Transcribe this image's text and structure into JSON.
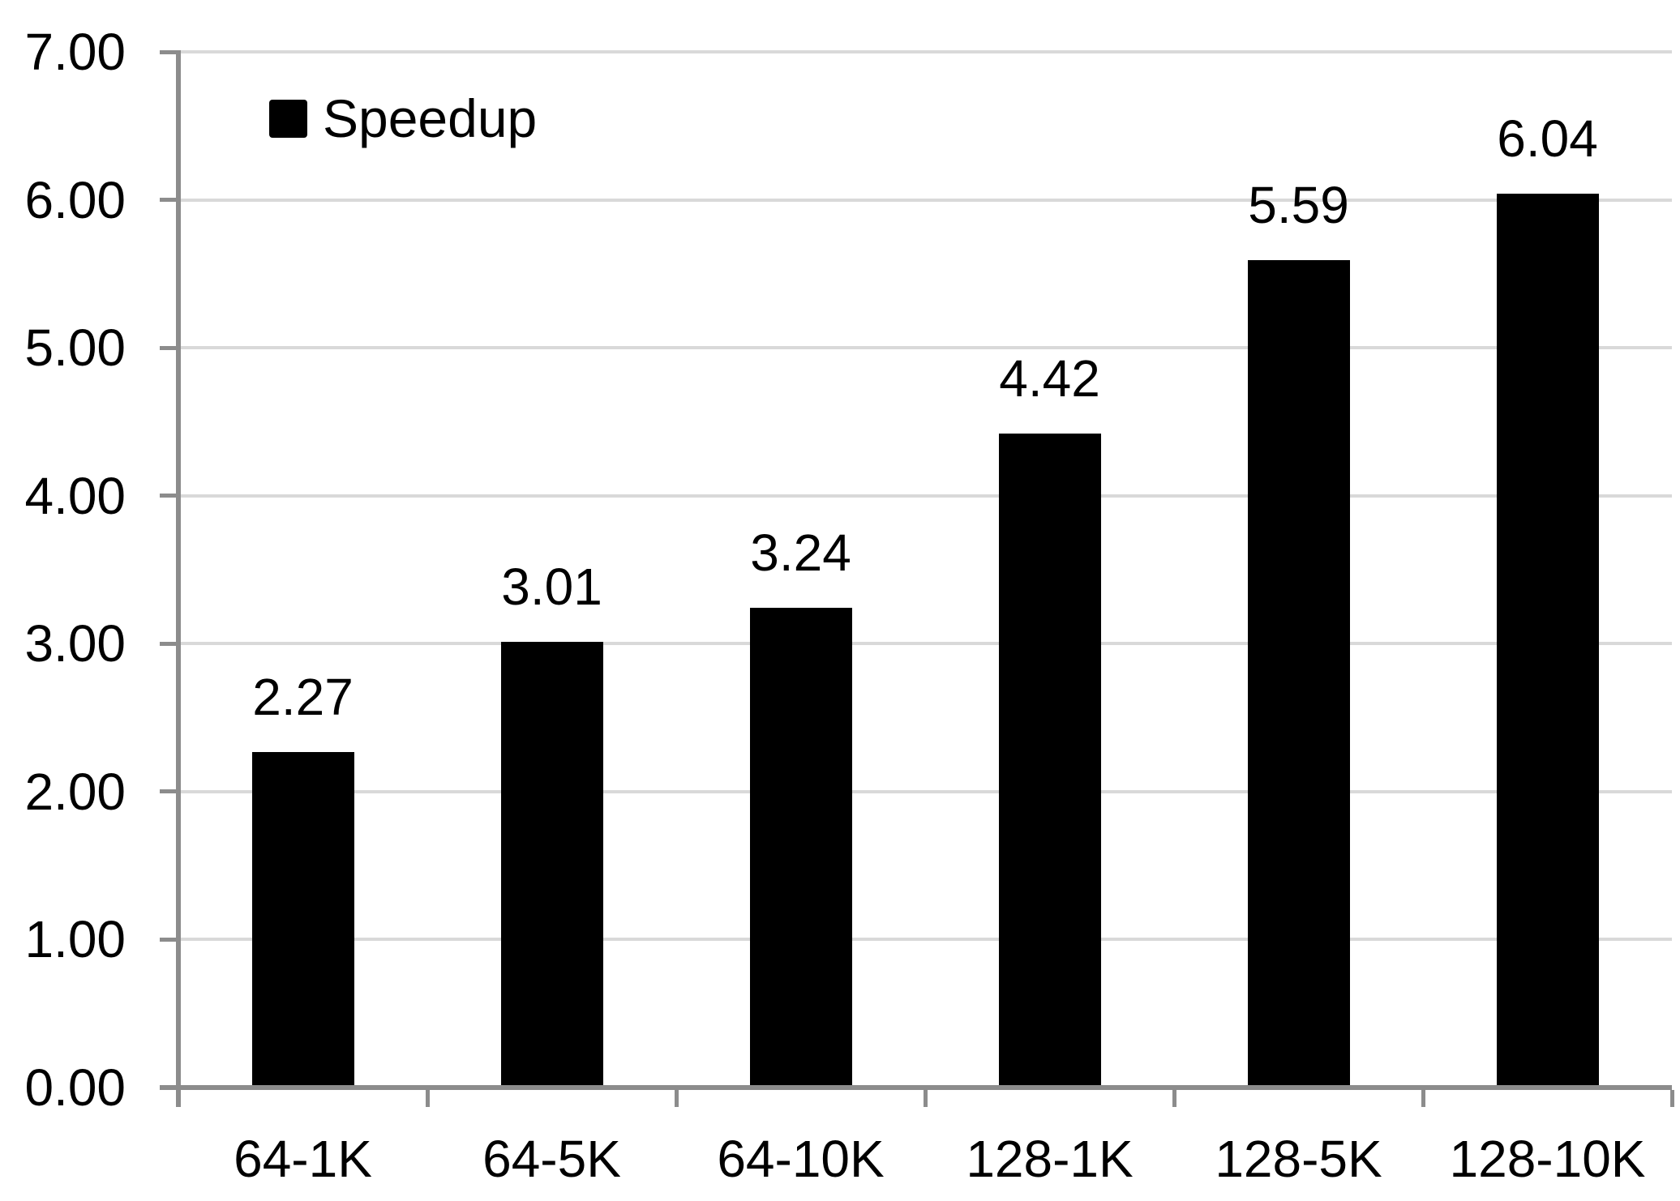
{
  "chart_data": {
    "type": "bar",
    "title": "",
    "categories": [
      "64-1K",
      "64-5K",
      "64-10K",
      "128-1K",
      "128-5K",
      "128-10K"
    ],
    "series": [
      {
        "name": "Speedup",
        "values": [
          2.27,
          3.01,
          3.24,
          4.42,
          5.59,
          6.04
        ]
      }
    ],
    "value_labels": [
      "2.27",
      "3.01",
      "3.24",
      "4.42",
      "5.59",
      "6.04"
    ],
    "xlabel": "",
    "ylabel": "",
    "ylim": [
      0,
      7
    ],
    "y_tick_step": 1,
    "y_tick_labels": [
      "0.00",
      "1.00",
      "2.00",
      "3.00",
      "4.00",
      "5.00",
      "6.00",
      "7.00"
    ],
    "grid": true,
    "legend": {
      "position": "top-left-inside",
      "entries": [
        "Speedup"
      ]
    },
    "colors": {
      "bar": "#000000",
      "gridline": "#D9D9D9",
      "axis": "#8C8C8C",
      "text": "#000000",
      "background": "#FFFFFF"
    }
  }
}
